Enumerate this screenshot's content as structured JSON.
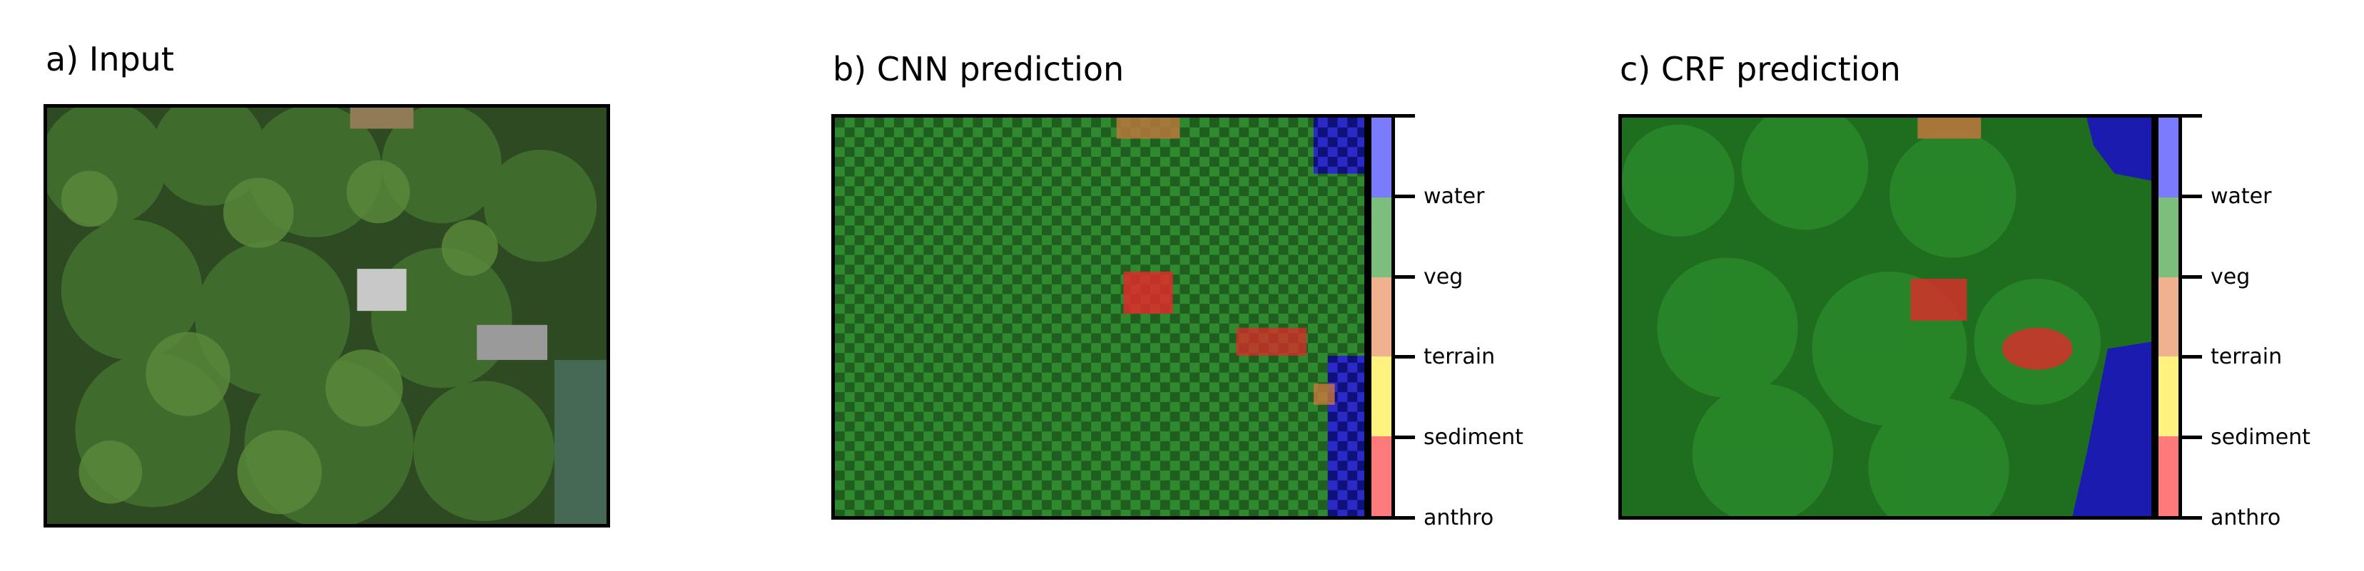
{
  "panels": {
    "a": {
      "title": "a) Input"
    },
    "b": {
      "title": "b) CNN prediction"
    },
    "c": {
      "title": "c) CRF prediction"
    }
  },
  "colorbar": {
    "classes": [
      {
        "label": "anthro",
        "color": "#ff7b7b"
      },
      {
        "label": "sediment",
        "color": "#fff27e"
      },
      {
        "label": "terrain",
        "color": "#f0b18f"
      },
      {
        "label": "veg",
        "color": "#7cbf7c"
      },
      {
        "label": "water",
        "color": "#7b7bff"
      }
    ]
  },
  "overlay_colors": {
    "veg": "#1e8a1e",
    "water": "#1b1bb0",
    "anthro": "#e02a2a",
    "terrain": "#c9773c",
    "sediment": "#c9b03c"
  }
}
